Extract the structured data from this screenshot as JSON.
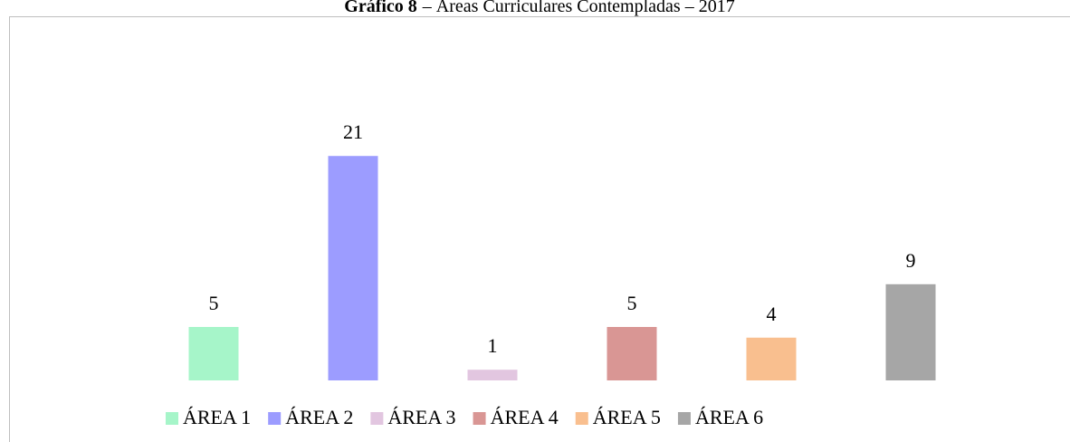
{
  "chart_data": {
    "type": "bar",
    "title_label": "Gráfico 8",
    "title": "– Áreas Curriculares Contempladas – 2017",
    "categories": [
      "ÁREA 1",
      "ÁREA 2",
      "ÁREA 3",
      "ÁREA 4",
      "ÁREA 5",
      "ÁREA 6"
    ],
    "values": [
      5,
      21,
      1,
      5,
      4,
      9
    ],
    "colors": [
      "#a6f5c9",
      "#9c9cff",
      "#e2c6e0",
      "#d99694",
      "#f9bf8f",
      "#a6a6a6"
    ],
    "ylim": [
      0,
      25
    ],
    "legend": "bottom"
  }
}
